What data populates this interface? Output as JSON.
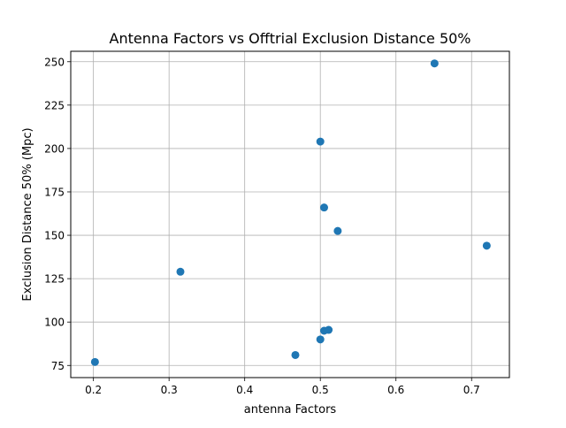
{
  "chart_data": {
    "type": "scatter",
    "title": "Antenna Factors vs Offtrial Exclusion Distance 50%",
    "xlabel": "antenna Factors",
    "ylabel": "Exclusion Distance 50% (Mpc)",
    "xlim": [
      0.17,
      0.75
    ],
    "ylim": [
      68,
      256
    ],
    "xticks": [
      0.2,
      0.3,
      0.4,
      0.5,
      0.6,
      0.7
    ],
    "xtick_labels": [
      "0.2",
      "0.3",
      "0.4",
      "0.5",
      "0.6",
      "0.7"
    ],
    "yticks": [
      75,
      100,
      125,
      150,
      175,
      200,
      225,
      250
    ],
    "ytick_labels": [
      "75",
      "100",
      "125",
      "150",
      "175",
      "200",
      "225",
      "250"
    ],
    "grid": true,
    "series": [
      {
        "color": "#1f77b4",
        "points": [
          {
            "x": 0.202,
            "y": 77
          },
          {
            "x": 0.315,
            "y": 129
          },
          {
            "x": 0.467,
            "y": 81
          },
          {
            "x": 0.5,
            "y": 90
          },
          {
            "x": 0.505,
            "y": 95
          },
          {
            "x": 0.511,
            "y": 95.5
          },
          {
            "x": 0.5,
            "y": 204
          },
          {
            "x": 0.505,
            "y": 166
          },
          {
            "x": 0.523,
            "y": 152.5
          },
          {
            "x": 0.651,
            "y": 249
          },
          {
            "x": 0.72,
            "y": 144
          }
        ]
      }
    ]
  }
}
